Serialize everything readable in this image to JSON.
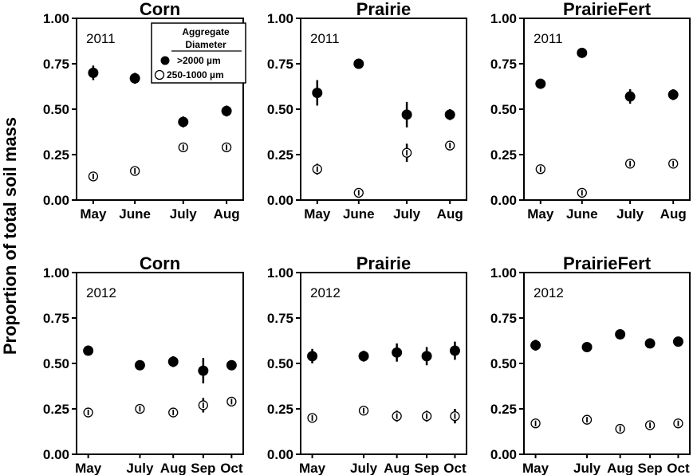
{
  "figure": {
    "ylabel": "Proportion of total soil mass"
  },
  "legend": {
    "title_line1": "Aggregate",
    "title_line2": "Diameter",
    "large_label": ">2000 µm",
    "small_label": "250-1000 µm"
  },
  "chart_data": [
    {
      "type": "scatter",
      "title": "Corn",
      "year_label": "2011",
      "categories": [
        "May",
        "June",
        "July",
        "Aug"
      ],
      "ylim": [
        0,
        1
      ],
      "yticks": [
        "0.00",
        "0.25",
        "0.50",
        "0.75",
        "1.00"
      ],
      "series": [
        {
          "name": ">2000 µm",
          "values": [
            0.7,
            0.67,
            0.43,
            0.49
          ],
          "errors": [
            0.04,
            0.03,
            0.03,
            0.03
          ]
        },
        {
          "name": "250-1000 µm",
          "values": [
            0.13,
            0.16,
            0.29,
            0.29
          ],
          "errors": [
            0.02,
            0.02,
            0.02,
            0.02
          ]
        }
      ]
    },
    {
      "type": "scatter",
      "title": "Prairie",
      "year_label": "2011",
      "categories": [
        "May",
        "June",
        "July",
        "Aug"
      ],
      "ylim": [
        0,
        1
      ],
      "yticks": [
        "0.00",
        "0.25",
        "0.50",
        "0.75",
        "1.00"
      ],
      "series": [
        {
          "name": ">2000 µm",
          "values": [
            0.59,
            0.75,
            0.47,
            0.47
          ],
          "errors": [
            0.07,
            0.01,
            0.07,
            0.03
          ]
        },
        {
          "name": "250-1000 µm",
          "values": [
            0.17,
            0.04,
            0.26,
            0.3
          ],
          "errors": [
            0.03,
            0.01,
            0.05,
            0.02
          ]
        }
      ]
    },
    {
      "type": "scatter",
      "title": "PrairieFert",
      "year_label": "2011",
      "categories": [
        "May",
        "June",
        "July",
        "Aug"
      ],
      "ylim": [
        0,
        1
      ],
      "yticks": [
        "0.00",
        "0.25",
        "0.50",
        "0.75",
        "1.00"
      ],
      "series": [
        {
          "name": ">2000 µm",
          "values": [
            0.64,
            0.81,
            0.57,
            0.58
          ],
          "errors": [
            0.01,
            0.01,
            0.04,
            0.03
          ]
        },
        {
          "name": "250-1000 µm",
          "values": [
            0.17,
            0.04,
            0.2,
            0.2
          ],
          "errors": [
            0.01,
            0.01,
            0.02,
            0.02
          ]
        }
      ]
    },
    {
      "type": "scatter",
      "title": "Corn",
      "year_label": "2012",
      "categories": [
        "May",
        "July",
        "Aug",
        "Sep",
        "Oct"
      ],
      "ylim": [
        0,
        1
      ],
      "yticks": [
        "0.00",
        "0.25",
        "0.50",
        "0.75",
        "1.00"
      ],
      "series": [
        {
          "name": ">2000 µm",
          "values": [
            0.57,
            0.49,
            0.51,
            0.46,
            0.49
          ],
          "errors": [
            0.01,
            0.01,
            0.03,
            0.07,
            0.01
          ]
        },
        {
          "name": "250-1000 µm",
          "values": [
            0.23,
            0.25,
            0.23,
            0.27,
            0.29
          ],
          "errors": [
            0.01,
            0.01,
            0.02,
            0.04,
            0.01
          ]
        }
      ]
    },
    {
      "type": "scatter",
      "title": "Prairie",
      "year_label": "2012",
      "categories": [
        "May",
        "July",
        "Aug",
        "Sep",
        "Oct"
      ],
      "ylim": [
        0,
        1
      ],
      "yticks": [
        "0.00",
        "0.25",
        "0.50",
        "0.75",
        "1.00"
      ],
      "series": [
        {
          "name": ">2000 µm",
          "values": [
            0.54,
            0.54,
            0.56,
            0.54,
            0.57
          ],
          "errors": [
            0.04,
            0.03,
            0.05,
            0.05,
            0.05
          ]
        },
        {
          "name": "250-1000 µm",
          "values": [
            0.2,
            0.24,
            0.21,
            0.21,
            0.21
          ],
          "errors": [
            0.02,
            0.02,
            0.03,
            0.03,
            0.04
          ]
        }
      ]
    },
    {
      "type": "scatter",
      "title": "PrairieFert",
      "year_label": "2012",
      "categories": [
        "May",
        "July",
        "Aug",
        "Sep",
        "Oct"
      ],
      "ylim": [
        0,
        1
      ],
      "yticks": [
        "0.00",
        "0.25",
        "0.50",
        "0.75",
        "1.00"
      ],
      "series": [
        {
          "name": ">2000 µm",
          "values": [
            0.6,
            0.59,
            0.66,
            0.61,
            0.62
          ],
          "errors": [
            0.03,
            0.01,
            0.01,
            0.01,
            0.01
          ]
        },
        {
          "name": "250-1000 µm",
          "values": [
            0.17,
            0.19,
            0.14,
            0.16,
            0.17
          ],
          "errors": [
            0.01,
            0.01,
            0.01,
            0.01,
            0.01
          ]
        }
      ]
    }
  ]
}
